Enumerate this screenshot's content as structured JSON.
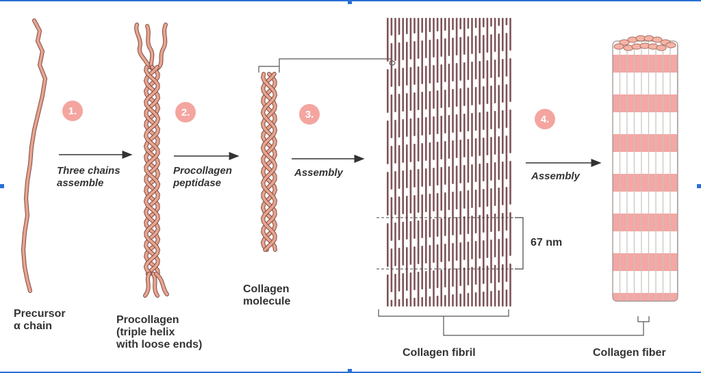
{
  "steps": [
    {
      "number": "1.",
      "label_line1": "Three chains",
      "label_line2": "assemble"
    },
    {
      "number": "2.",
      "label_line1": "Procollagen",
      "label_line2": "peptidase"
    },
    {
      "number": "3.",
      "label_line1": "Assembly",
      "label_line2": ""
    },
    {
      "number": "4.",
      "label_line1": "Assembly",
      "label_line2": ""
    }
  ],
  "stages": {
    "precursor": {
      "line1": "Precursor",
      "line2": "α chain"
    },
    "procollagen": {
      "line1": "Procollagen",
      "line2": "(triple helix",
      "line3": "with loose ends)"
    },
    "molecule": {
      "line1": "Collagen",
      "line2": "molecule"
    },
    "fibril": {
      "line1": "Collagen fibril"
    },
    "fiber": {
      "line1": "Collagen fiber"
    }
  },
  "dimension": {
    "label": "67 nm"
  },
  "colors": {
    "strand_fill": "#e9a48e",
    "strand_outline": "#7a4a44",
    "fibril_bar": "#7d5358",
    "arrow": "#333333",
    "badge": "#f4a5a0",
    "fiber_band": "#f08a86",
    "fiber_edge": "#c9c2bf",
    "selection_frame": "#2a6fd6"
  }
}
